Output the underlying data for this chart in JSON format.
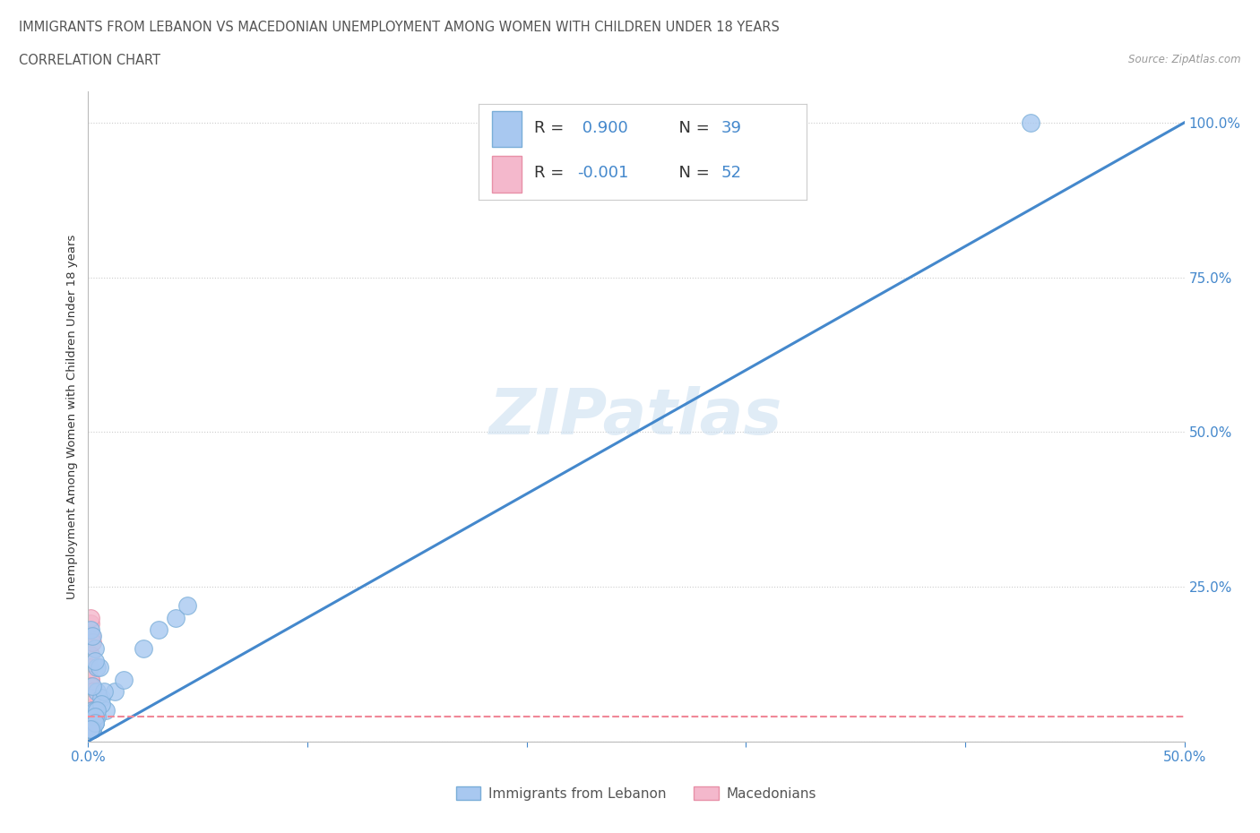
{
  "title_line1": "IMMIGRANTS FROM LEBANON VS MACEDONIAN UNEMPLOYMENT AMONG WOMEN WITH CHILDREN UNDER 18 YEARS",
  "title_line2": "CORRELATION CHART",
  "source_text": "Source: ZipAtlas.com",
  "ylabel": "Unemployment Among Women with Children Under 18 years",
  "watermark": "ZIPatlas",
  "lebanon_color": "#a8c8f0",
  "macedonian_color": "#f4b8cc",
  "lebanon_edge_color": "#7aaed8",
  "macedonian_edge_color": "#e890a8",
  "lebanon_line_color": "#4488cc",
  "macedonian_line_color": "#f08898",
  "title_color": "#555555",
  "tick_color": "#4488cc",
  "grid_color": "#cccccc",
  "xlim": [
    0.0,
    0.5
  ],
  "ylim": [
    0.0,
    1.05
  ],
  "lebanon_scatter_x": [
    0.001,
    0.002,
    0.003,
    0.003,
    0.004,
    0.002,
    0.006,
    0.004,
    0.008,
    0.012,
    0.003,
    0.005,
    0.016,
    0.025,
    0.032,
    0.04,
    0.002,
    0.007,
    0.001,
    0.003,
    0.004,
    0.006,
    0.002,
    0.045,
    0.003,
    0.001,
    0.002,
    0.004,
    0.002,
    0.003,
    0.001,
    0.002,
    0.001,
    0.003,
    0.001,
    0.002,
    0.003,
    0.002,
    0.43
  ],
  "lebanon_scatter_y": [
    0.02,
    0.05,
    0.03,
    0.04,
    0.08,
    0.02,
    0.07,
    0.12,
    0.05,
    0.08,
    0.15,
    0.12,
    0.1,
    0.15,
    0.18,
    0.2,
    0.02,
    0.08,
    0.18,
    0.05,
    0.04,
    0.06,
    0.02,
    0.22,
    0.03,
    0.02,
    0.02,
    0.05,
    0.02,
    0.04,
    0.02,
    0.02,
    0.02,
    0.03,
    0.02,
    0.17,
    0.13,
    0.09,
    1.0
  ],
  "macedonian_scatter_x": [
    0.0005,
    0.001,
    0.001,
    0.0015,
    0.001,
    0.002,
    0.001,
    0.0008,
    0.001,
    0.0012,
    0.0008,
    0.001,
    0.0015,
    0.001,
    0.002,
    0.001,
    0.0008,
    0.001,
    0.001,
    0.0015,
    0.001,
    0.002,
    0.001,
    0.001,
    0.002,
    0.001,
    0.001,
    0.002,
    0.001,
    0.001,
    0.002,
    0.001,
    0.001,
    0.002,
    0.001,
    0.001,
    0.002,
    0.001,
    0.001,
    0.002,
    0.001,
    0.001,
    0.002,
    0.001,
    0.001,
    0.002,
    0.001,
    0.001,
    0.002,
    0.001,
    0.001,
    0.002
  ],
  "macedonian_scatter_y": [
    0.05,
    0.19,
    0.2,
    0.17,
    0.14,
    0.16,
    0.08,
    0.12,
    0.06,
    0.1,
    0.03,
    0.05,
    0.07,
    0.02,
    0.04,
    0.06,
    0.08,
    0.1,
    0.02,
    0.03,
    0.05,
    0.07,
    0.09,
    0.02,
    0.04,
    0.06,
    0.03,
    0.05,
    0.07,
    0.02,
    0.03,
    0.04,
    0.06,
    0.02,
    0.03,
    0.04,
    0.05,
    0.07,
    0.02,
    0.03,
    0.05,
    0.06,
    0.08,
    0.02,
    0.04,
    0.03,
    0.05,
    0.06,
    0.02,
    0.03,
    0.04,
    0.05
  ],
  "mac_trend_y": 0.04,
  "legend_r1_text": "R =  0.900   N = 39",
  "legend_r2_text": "R = -0.001   N = 52",
  "legend_r_color": "#333333",
  "legend_val_color": "#4488cc"
}
